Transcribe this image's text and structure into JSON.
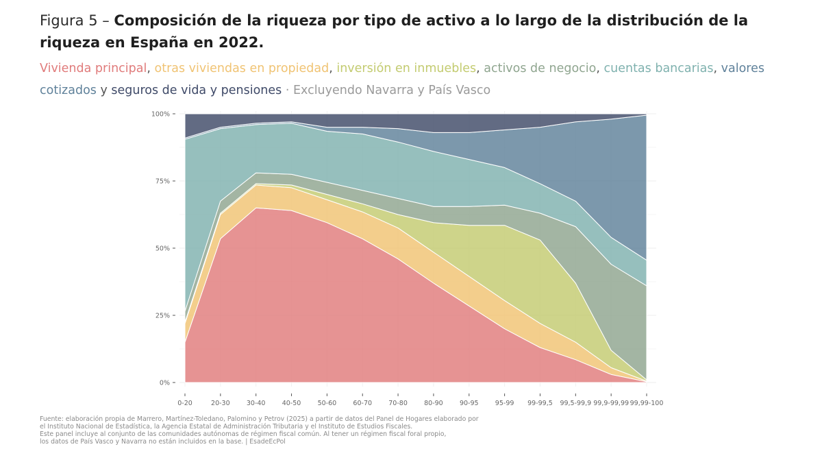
{
  "header": {
    "prefix": "Figura 5 – ",
    "title_bold": "Composición de la riqueza por tipo de activo a lo largo de la distribución de la riqueza en España en 2022."
  },
  "subtitle": {
    "items": [
      {
        "text": "Vivienda principal",
        "color": "#e07b7b"
      },
      {
        "text": ", ",
        "color": "#555555"
      },
      {
        "text": "otras viviendas en propiedad",
        "color": "#f0c373"
      },
      {
        "text": ", ",
        "color": "#555555"
      },
      {
        "text": "inversión en inmuebles",
        "color": "#c3cb70"
      },
      {
        "text": ", ",
        "color": "#555555"
      },
      {
        "text": "activos de negocio",
        "color": "#8fa58f"
      },
      {
        "text": ", ",
        "color": "#555555"
      },
      {
        "text": "cuentas bancarias",
        "color": "#7fb1ae"
      },
      {
        "text": ", ",
        "color": "#555555"
      },
      {
        "text": "valores cotizados",
        "color": "#5f819a"
      },
      {
        "text": " y ",
        "color": "#555555"
      },
      {
        "text": "seguros de vida y pensiones",
        "color": "#3f4a68"
      },
      {
        "text": " · Excluyendo Navarra y País Vasco",
        "color": "#9a9a9a"
      }
    ]
  },
  "chart_data": {
    "type": "area",
    "stacked": true,
    "categories": [
      "0-20",
      "20-30",
      "30-40",
      "40-50",
      "50-60",
      "60-70",
      "70-80",
      "80-90",
      "90-95",
      "95-99",
      "99-99,5",
      "99,5-99,9",
      "99,9-99,99",
      "99,99-100"
    ],
    "y_ticks": [
      "0%",
      "25%",
      "50%",
      "75%",
      "100%"
    ],
    "ylim": [
      0,
      100
    ],
    "grid": true,
    "series": [
      {
        "name": "Vivienda principal",
        "color": "#e07b7b",
        "values": [
          15,
          53.5,
          65,
          64,
          59.5,
          53.5,
          46,
          37,
          28.5,
          20,
          13,
          8.5,
          3,
          0.3
        ]
      },
      {
        "name": "otras viviendas en propiedad",
        "color": "#f0c373",
        "values": [
          7,
          9,
          8.5,
          8.5,
          8.5,
          10,
          11.5,
          11.5,
          11,
          10.5,
          9,
          6.5,
          2.5,
          0.2
        ]
      },
      {
        "name": "inversión en inmuebles",
        "color": "#c3cb70",
        "values": [
          0.5,
          0.5,
          0.5,
          1,
          2,
          3,
          5,
          11,
          19,
          28,
          31,
          22,
          6.5,
          0.5
        ]
      },
      {
        "name": "activos de negocio",
        "color": "#8fa58f",
        "values": [
          4,
          4.5,
          4,
          4,
          4.5,
          5,
          6,
          6,
          7,
          7.5,
          10,
          21,
          32,
          35
        ]
      },
      {
        "name": "cuentas bancarias",
        "color": "#7fb1ae",
        "values": [
          64,
          27,
          18,
          19,
          19,
          21,
          21,
          20.5,
          17.5,
          14,
          11,
          9.5,
          10,
          9.5
        ]
      },
      {
        "name": "valores cotizados",
        "color": "#5f819a",
        "values": [
          0.5,
          0.5,
          0.5,
          0.5,
          1.5,
          2.5,
          5,
          7,
          10,
          14,
          21,
          29.5,
          44,
          54
        ]
      },
      {
        "name": "seguros de vida y pensiones",
        "color": "#3f4a68",
        "values": [
          9,
          5,
          3.5,
          3,
          5,
          5,
          5.5,
          7,
          7,
          6,
          5,
          3,
          2,
          0.5
        ]
      }
    ]
  },
  "footer": {
    "lines": [
      "Fuente: elaboración propia de Marrero, Martínez-Toledano, Palomino y Petrov (2025) a partir de datos del Panel de Hogares elaborado por",
      "el Instituto Nacional de Estadística, la Agencia Estatal de Administración Tributaria y el Instituto de Estudios Fiscales.",
      "Este panel incluye al conjunto de las comunidades autónomas de régimen fiscal común. Al tener un régimen fiscal foral propio,",
      "los datos de País Vasco y Navarra no están incluidos en la base. | EsadeEcPol"
    ]
  }
}
